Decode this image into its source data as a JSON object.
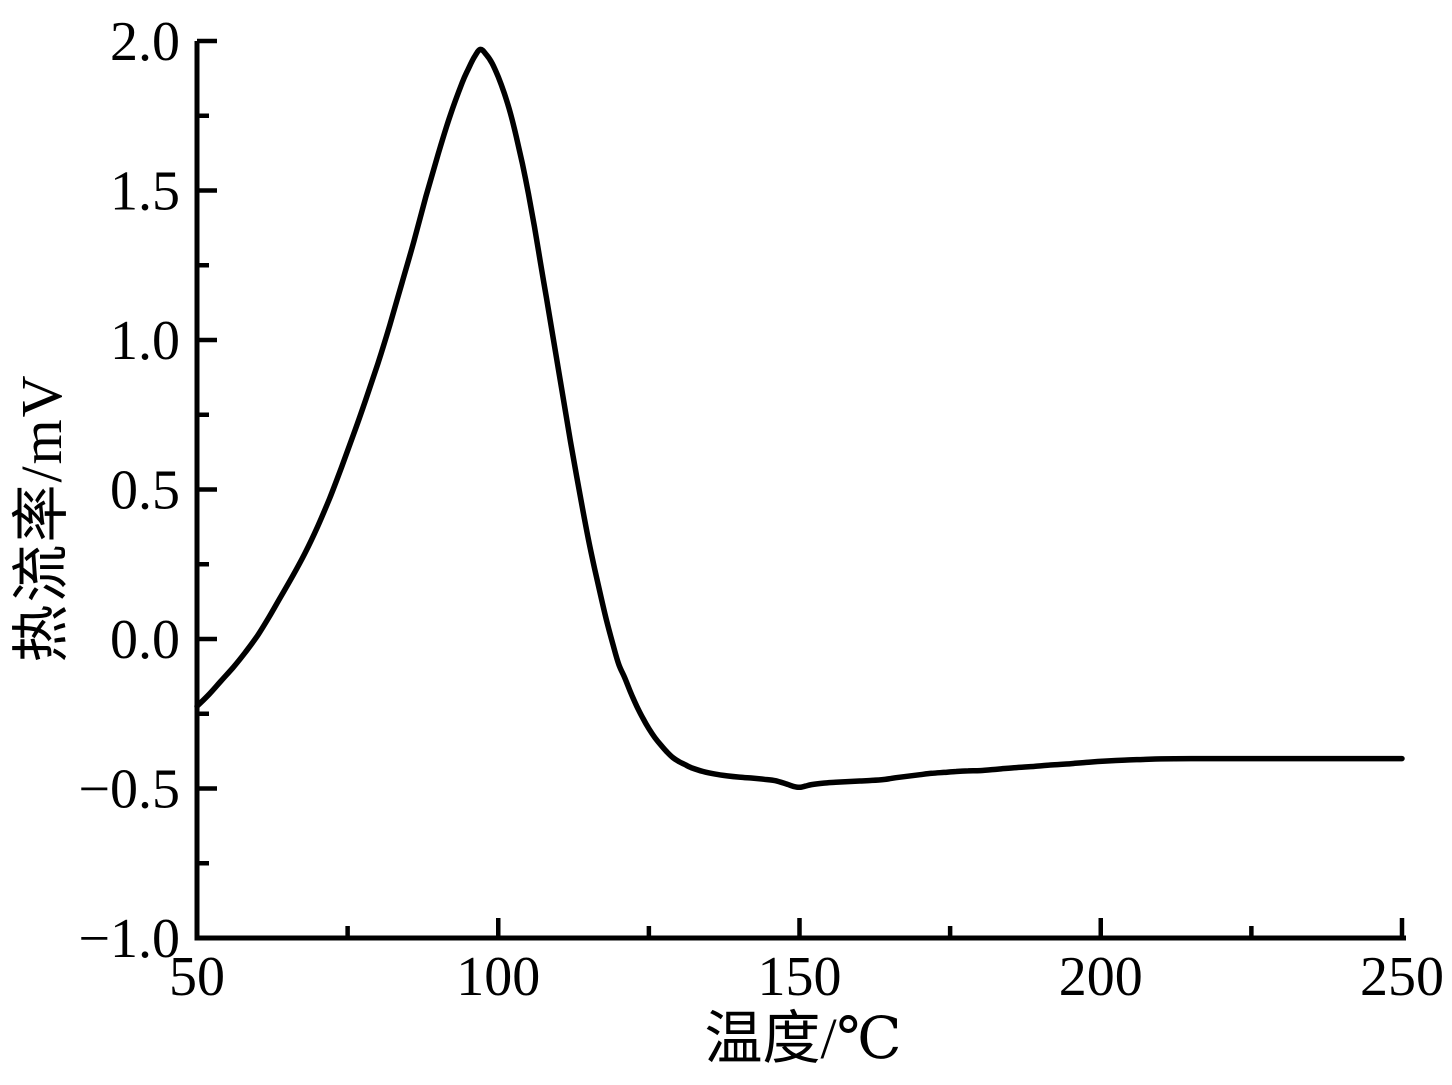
{
  "figure": {
    "background_color": "#ffffff",
    "foreground_color": "#000000"
  },
  "chart_data": {
    "type": "line",
    "title": "",
    "xlabel": "温度/℃",
    "ylabel": "热流率/mV",
    "xlim": [
      50,
      250
    ],
    "ylim": [
      -1.0,
      2.0
    ],
    "grid": false,
    "legend_position": "none",
    "x_major_ticks": [
      50,
      100,
      150,
      200,
      250
    ],
    "x_tick_labels": [
      "50",
      "100",
      "150",
      "200",
      "250"
    ],
    "x_minor_ticks": [
      75,
      125,
      175,
      225
    ],
    "y_major_ticks": [
      -1.0,
      -0.5,
      0.0,
      0.5,
      1.0,
      1.5,
      2.0
    ],
    "y_tick_labels": [
      "−1.0",
      "−0.5",
      "0.0",
      "0.5",
      "1.0",
      "1.5",
      "2.0"
    ],
    "y_minor_ticks": [
      -0.75,
      -0.25,
      0.25,
      0.75,
      1.25,
      1.75
    ],
    "series": [
      {
        "color": "#000000",
        "line_width": 5.5,
        "points": [
          [
            50,
            -0.225
          ],
          [
            52,
            -0.185
          ],
          [
            54,
            -0.14
          ],
          [
            56,
            -0.095
          ],
          [
            58,
            -0.045
          ],
          [
            60,
            0.01
          ],
          [
            62,
            0.075
          ],
          [
            64,
            0.145
          ],
          [
            66,
            0.215
          ],
          [
            68,
            0.29
          ],
          [
            70,
            0.375
          ],
          [
            72,
            0.47
          ],
          [
            74,
            0.575
          ],
          [
            76,
            0.685
          ],
          [
            78,
            0.8
          ],
          [
            80,
            0.92
          ],
          [
            82,
            1.05
          ],
          [
            84,
            1.19
          ],
          [
            86,
            1.33
          ],
          [
            88,
            1.48
          ],
          [
            90,
            1.62
          ],
          [
            92,
            1.75
          ],
          [
            94,
            1.86
          ],
          [
            95,
            1.905
          ],
          [
            96,
            1.945
          ],
          [
            97,
            1.972
          ],
          [
            98,
            1.955
          ],
          [
            99,
            1.925
          ],
          [
            100,
            1.88
          ],
          [
            101,
            1.825
          ],
          [
            102,
            1.76
          ],
          [
            103,
            1.68
          ],
          [
            104,
            1.59
          ],
          [
            105,
            1.49
          ],
          [
            106,
            1.38
          ],
          [
            107,
            1.26
          ],
          [
            108,
            1.14
          ],
          [
            109,
            1.02
          ],
          [
            110,
            0.9
          ],
          [
            111,
            0.78
          ],
          [
            112,
            0.66
          ],
          [
            113,
            0.545
          ],
          [
            114,
            0.435
          ],
          [
            115,
            0.33
          ],
          [
            116,
            0.235
          ],
          [
            117,
            0.145
          ],
          [
            118,
            0.06
          ],
          [
            119,
            -0.015
          ],
          [
            120,
            -0.085
          ],
          [
            121,
            -0.13
          ],
          [
            122,
            -0.18
          ],
          [
            123,
            -0.225
          ],
          [
            124,
            -0.265
          ],
          [
            125,
            -0.3
          ],
          [
            126,
            -0.33
          ],
          [
            127,
            -0.355
          ],
          [
            128,
            -0.378
          ],
          [
            129,
            -0.397
          ],
          [
            130,
            -0.41
          ],
          [
            131,
            -0.42
          ],
          [
            132,
            -0.43
          ],
          [
            134,
            -0.443
          ],
          [
            136,
            -0.452
          ],
          [
            138,
            -0.458
          ],
          [
            140,
            -0.462
          ],
          [
            142,
            -0.465
          ],
          [
            144,
            -0.469
          ],
          [
            146,
            -0.474
          ],
          [
            148,
            -0.486
          ],
          [
            149,
            -0.493
          ],
          [
            150,
            -0.496
          ],
          [
            151,
            -0.492
          ],
          [
            152,
            -0.487
          ],
          [
            154,
            -0.482
          ],
          [
            156,
            -0.479
          ],
          [
            158,
            -0.477
          ],
          [
            160,
            -0.475
          ],
          [
            162,
            -0.473
          ],
          [
            164,
            -0.47
          ],
          [
            166,
            -0.464
          ],
          [
            168,
            -0.459
          ],
          [
            170,
            -0.454
          ],
          [
            172,
            -0.449
          ],
          [
            174,
            -0.446
          ],
          [
            176,
            -0.443
          ],
          [
            178,
            -0.441
          ],
          [
            180,
            -0.44
          ],
          [
            183,
            -0.435
          ],
          [
            186,
            -0.43
          ],
          [
            189,
            -0.426
          ],
          [
            192,
            -0.421
          ],
          [
            195,
            -0.417
          ],
          [
            198,
            -0.412
          ],
          [
            201,
            -0.408
          ],
          [
            204,
            -0.405
          ],
          [
            207,
            -0.403
          ],
          [
            210,
            -0.401
          ],
          [
            215,
            -0.4
          ],
          [
            220,
            -0.4
          ],
          [
            225,
            -0.4
          ],
          [
            230,
            -0.4
          ],
          [
            235,
            -0.4
          ],
          [
            240,
            -0.4
          ],
          [
            245,
            -0.4
          ],
          [
            250,
            -0.4
          ]
        ]
      }
    ]
  }
}
